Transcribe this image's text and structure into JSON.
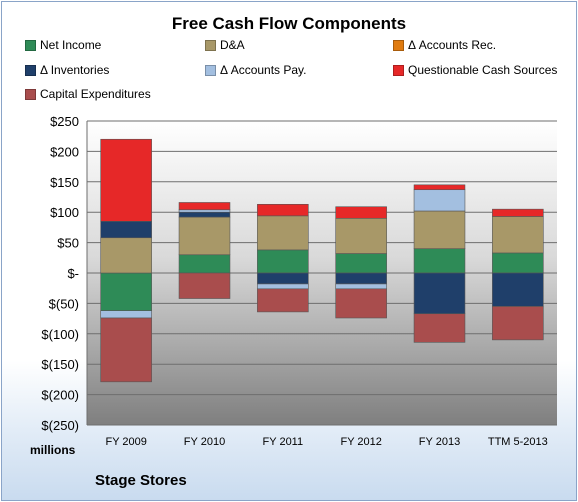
{
  "chart_data": {
    "type": "bar",
    "stacked": true,
    "title": "Free Cash Flow Components",
    "units_label": "millions",
    "footer": "Stage Stores",
    "categories": [
      "FY 2009",
      "FY 2010",
      "FY 2011",
      "FY 2012",
      "FY 2013",
      "TTM 5-2013"
    ],
    "ylim": [
      -250,
      250
    ],
    "yticks": [
      250,
      200,
      150,
      100,
      50,
      0,
      -50,
      -100,
      -150,
      -200,
      -250
    ],
    "ytick_labels": [
      "$250",
      "$200",
      "$150",
      "$100",
      "$50",
      "$-",
      "$(50)",
      "$(100)",
      "$(150)",
      "$(200)",
      "$(250)"
    ],
    "grid": true,
    "legend_position": "top",
    "series": [
      {
        "name": "Net Income",
        "color": "#2e8b57",
        "values": [
          -62,
          30,
          38,
          32,
          40,
          33
        ]
      },
      {
        "name": "D&A",
        "color": "#a89868",
        "values": [
          58,
          62,
          56,
          58,
          62,
          60
        ]
      },
      {
        "name": "Δ Accounts Rec.",
        "color": "#e07b10",
        "values": [
          0,
          0,
          0,
          0,
          0,
          0
        ]
      },
      {
        "name": "Δ Inventories",
        "color": "#1f3f6a",
        "values": [
          27,
          8,
          -18,
          -18,
          -67,
          -55
        ]
      },
      {
        "name": "Δ Accounts Pay.",
        "color": "#a3bfe0",
        "values": [
          -12,
          4,
          -8,
          -8,
          35,
          0
        ]
      },
      {
        "name": "Questionable Cash Sources",
        "color": "#e62828",
        "values": [
          135,
          12,
          19,
          19,
          8,
          12
        ]
      },
      {
        "name": "Capital Expenditures",
        "color": "#a94d4d",
        "values": [
          -105,
          -42,
          -38,
          -48,
          -47,
          -55
        ]
      }
    ]
  }
}
